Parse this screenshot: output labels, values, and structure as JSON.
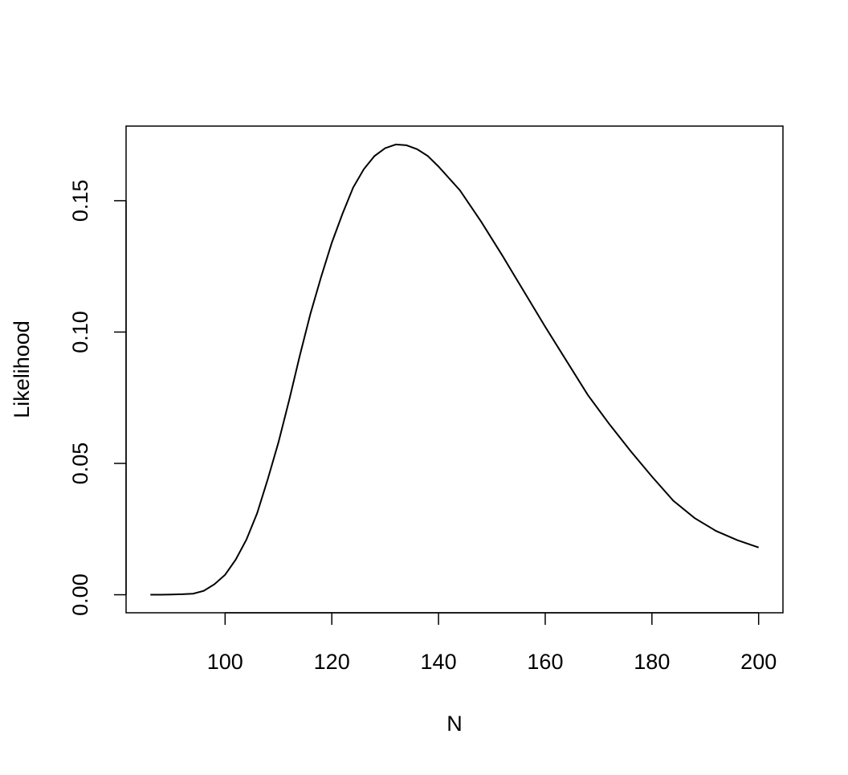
{
  "chart_data": {
    "type": "line",
    "xlabel": "N",
    "ylabel": "Likelihood",
    "x": [
      86,
      88,
      90,
      92,
      94,
      96,
      98,
      100,
      102,
      104,
      106,
      108,
      110,
      112,
      114,
      116,
      118,
      120,
      122,
      124,
      126,
      128,
      130,
      132,
      134,
      136,
      138,
      140,
      144,
      148,
      152,
      156,
      160,
      164,
      168,
      172,
      176,
      180,
      184,
      188,
      192,
      196,
      200
    ],
    "series": [
      {
        "color": "#000000",
        "values": [
          0,
          0,
          0.0001,
          0.0002,
          0.0004,
          0.0015,
          0.004,
          0.0076,
          0.0134,
          0.021,
          0.031,
          0.044,
          0.058,
          0.074,
          0.091,
          0.107,
          0.121,
          0.134,
          0.145,
          0.155,
          0.162,
          0.167,
          0.17,
          0.1714,
          0.1711,
          0.1696,
          0.167,
          0.163,
          0.154,
          0.142,
          0.129,
          0.1155,
          0.102,
          0.089,
          0.076,
          0.065,
          0.0547,
          0.045,
          0.0358,
          0.0292,
          0.0243,
          0.0208,
          0.018
        ]
      }
    ],
    "xlim": [
      81.44,
      204.56
    ],
    "xticks": [
      100,
      120,
      140,
      160,
      180,
      200
    ],
    "ylim": [
      -0.00686,
      0.1784
    ],
    "yticks": [
      {
        "value": 0,
        "label": "0.00"
      },
      0.05,
      {
        "value": 0.1,
        "label": "0.10"
      },
      0.15
    ]
  }
}
